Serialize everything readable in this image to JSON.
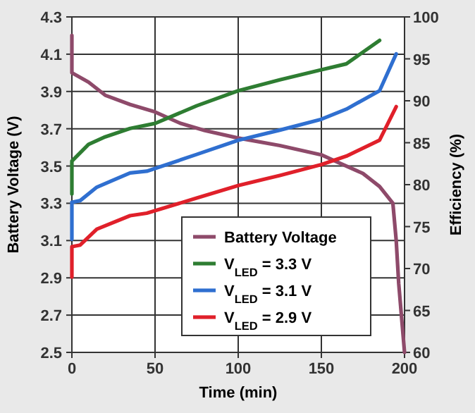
{
  "chart_data": {
    "type": "line",
    "xlabel": "Time (min)",
    "ylabel": "Battery Voltage (V)",
    "y2label": "Efficiency (%)",
    "xlim": [
      0,
      200
    ],
    "xticks": [
      0,
      50,
      100,
      150,
      200
    ],
    "ylim": [
      2.5,
      4.3
    ],
    "yticks": [
      2.5,
      2.7,
      2.9,
      3.1,
      3.3,
      3.5,
      3.7,
      3.9,
      4.1,
      4.3
    ],
    "y2lim": [
      60,
      100
    ],
    "y2ticks": [
      60,
      65,
      70,
      75,
      80,
      85,
      90,
      95,
      100
    ],
    "grid": true,
    "legend": "bottom right",
    "line_style": "solid",
    "marker": "none",
    "series": [
      {
        "name": "Battery Voltage",
        "color": "#8e4a6a",
        "x": [
          0,
          0,
          10,
          20,
          35,
          50,
          65,
          80,
          100,
          125,
          150,
          160,
          175,
          185,
          193,
          195,
          196.5,
          200
        ],
        "values": [
          4.2,
          4.0,
          3.95,
          3.88,
          3.83,
          3.79,
          3.73,
          3.69,
          3.65,
          3.61,
          3.56,
          3.52,
          3.46,
          3.39,
          3.3,
          3.1,
          2.87,
          2.5
        ]
      },
      {
        "name": "V$_{LED}$ = 3.3 V",
        "color": "#2e7d32",
        "axis": "y2",
        "x": [
          0,
          0,
          10,
          20,
          35,
          50,
          75,
          100,
          125,
          150,
          165,
          185
        ],
        "values": [
          78.9,
          82.8,
          84.8,
          85.7,
          86.7,
          87.3,
          89.4,
          91.2,
          92.5,
          93.7,
          94.4,
          97.2
        ]
      },
      {
        "name": "V$_{LED}$ = 3.1 V",
        "color": "#2f6fd0",
        "axis": "y2",
        "x": [
          0,
          0,
          5,
          15,
          35,
          45,
          75,
          100,
          125,
          150,
          165,
          185,
          195
        ],
        "values": [
          73.5,
          77.9,
          78.1,
          79.7,
          81.4,
          81.6,
          83.6,
          85.3,
          86.5,
          87.8,
          89,
          91.2,
          95.6
        ]
      },
      {
        "name": "V$_{LED}$ = 2.9 V",
        "color": "#e0202a",
        "axis": "y2",
        "x": [
          0,
          0,
          5,
          15,
          35,
          45,
          75,
          100,
          125,
          150,
          165,
          185,
          195
        ],
        "values": [
          69,
          72.6,
          72.8,
          74.7,
          76.3,
          76.6,
          78.4,
          79.9,
          81.1,
          82.4,
          83.4,
          85.3,
          89.3
        ]
      }
    ]
  }
}
